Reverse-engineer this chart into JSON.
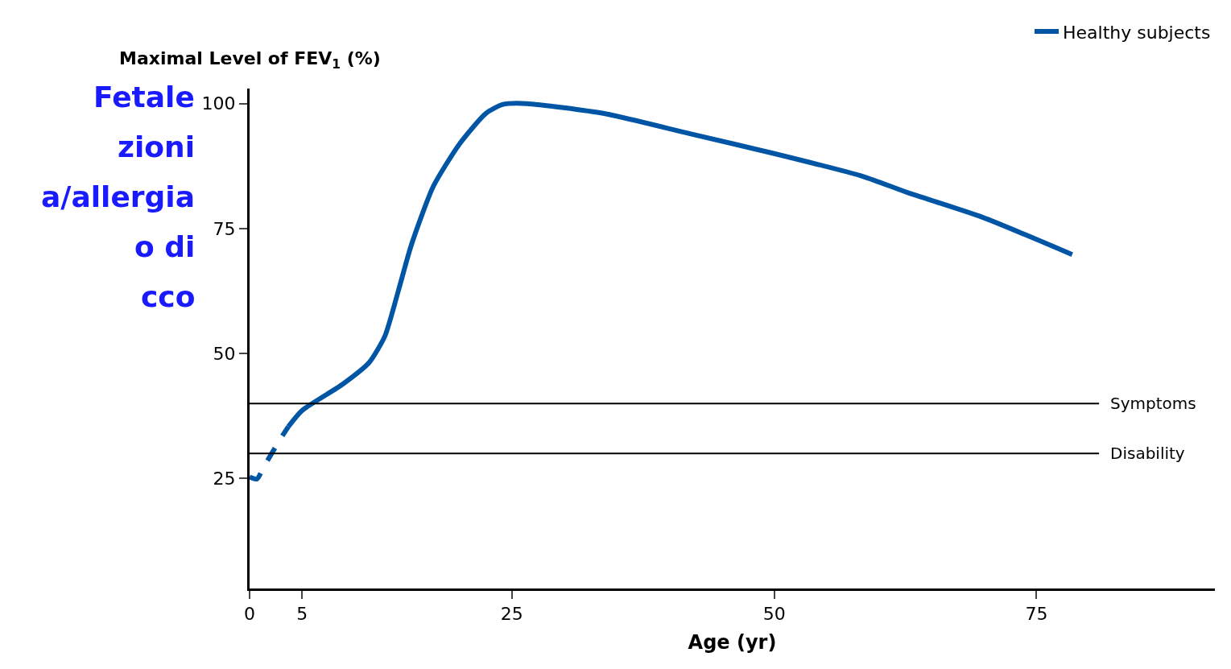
{
  "chart_data": {
    "type": "line",
    "ylabel": "Maximal Level of FEV$_{1}$ (%)",
    "xlabel": "Age (yr)",
    "annotations": [
      "Fetale",
      "zioni",
      "a/allergia",
      "o di",
      "cco"
    ],
    "series": [
      {
        "color": "#0055a5",
        "line_style": "dashed",
        "x": [
          0,
          0.7,
          1.4,
          2.9,
          3.7
        ],
        "values": [
          25.3,
          24.9,
          27.5,
          32.8,
          35.4
        ]
      },
      {
        "name": "Healthy subjects",
        "color": "#0055a5",
        "line_style": "solid",
        "x": [
          3.7,
          5,
          8.9,
          11.4,
          12.9,
          14.2,
          15.4,
          17.5,
          20,
          22.5,
          24.1,
          26.4,
          33.8,
          41.9,
          50,
          58.5,
          62.7,
          69.8,
          78.4
        ],
        "values": [
          35.4,
          38.6,
          43.9,
          48.2,
          53.5,
          62.7,
          71.6,
          83.4,
          91.9,
          98,
          99.8,
          100,
          98,
          94,
          90,
          85.4,
          82.2,
          77.3,
          69.8
        ]
      }
    ],
    "ref_lines": [
      {
        "axis": "y",
        "value": 40,
        "label": "Symptoms",
        "color": "#000000"
      },
      {
        "axis": "y",
        "value": 30,
        "label": "Disability",
        "color": "#000000"
      }
    ],
    "xlim": [
      0,
      92
    ],
    "xticks": [
      0,
      5,
      25,
      50,
      75
    ],
    "ylim": [
      3,
      103
    ],
    "yticks": [
      25,
      50,
      75,
      100
    ],
    "legend": "top right"
  }
}
